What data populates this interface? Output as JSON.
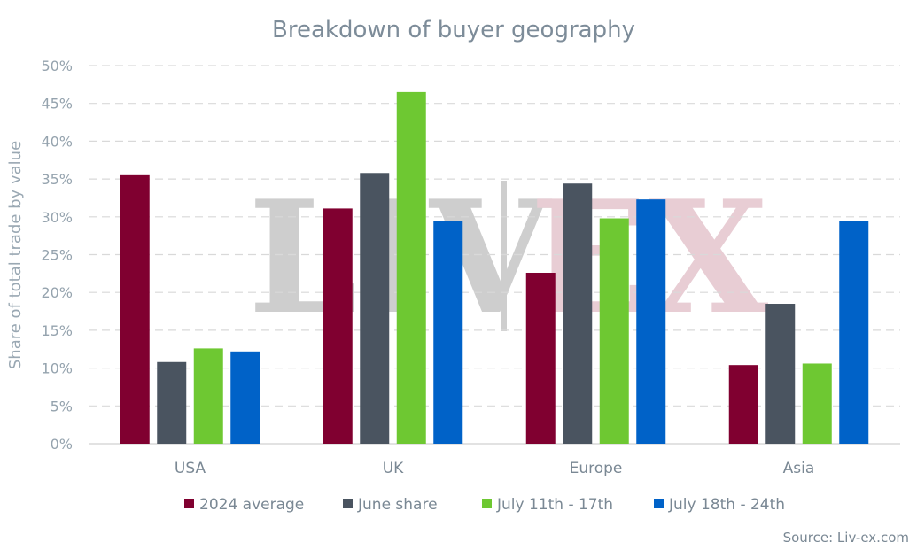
{
  "chart_data": {
    "type": "bar",
    "title": "Breakdown of buyer geography",
    "ylabel": "Share of total trade by value",
    "xlabel": "",
    "ylim": [
      0,
      50
    ],
    "yticks": [
      "0%",
      "5%",
      "10%",
      "15%",
      "20%",
      "25%",
      "30%",
      "35%",
      "40%",
      "45%",
      "50%"
    ],
    "categories": [
      "USA",
      "UK",
      "Europe",
      "Asia"
    ],
    "series": [
      {
        "name": "2024 average",
        "color": "#800030",
        "values": [
          35.5,
          31.1,
          22.6,
          10.4
        ]
      },
      {
        "name": "June share",
        "color": "#4a5460",
        "values": [
          10.8,
          35.8,
          34.4,
          18.5
        ]
      },
      {
        "name": "July 11th - 17th",
        "color": "#6ec832",
        "values": [
          12.6,
          46.5,
          29.8,
          10.6
        ]
      },
      {
        "name": "July 18th - 24th",
        "color": "#0062c8",
        "values": [
          12.2,
          29.5,
          32.3,
          29.5
        ]
      }
    ],
    "grid": true,
    "legend": "bottom",
    "source": "Source: Liv-ex.com",
    "watermark": {
      "left": "LIV",
      "right": "EX"
    }
  }
}
